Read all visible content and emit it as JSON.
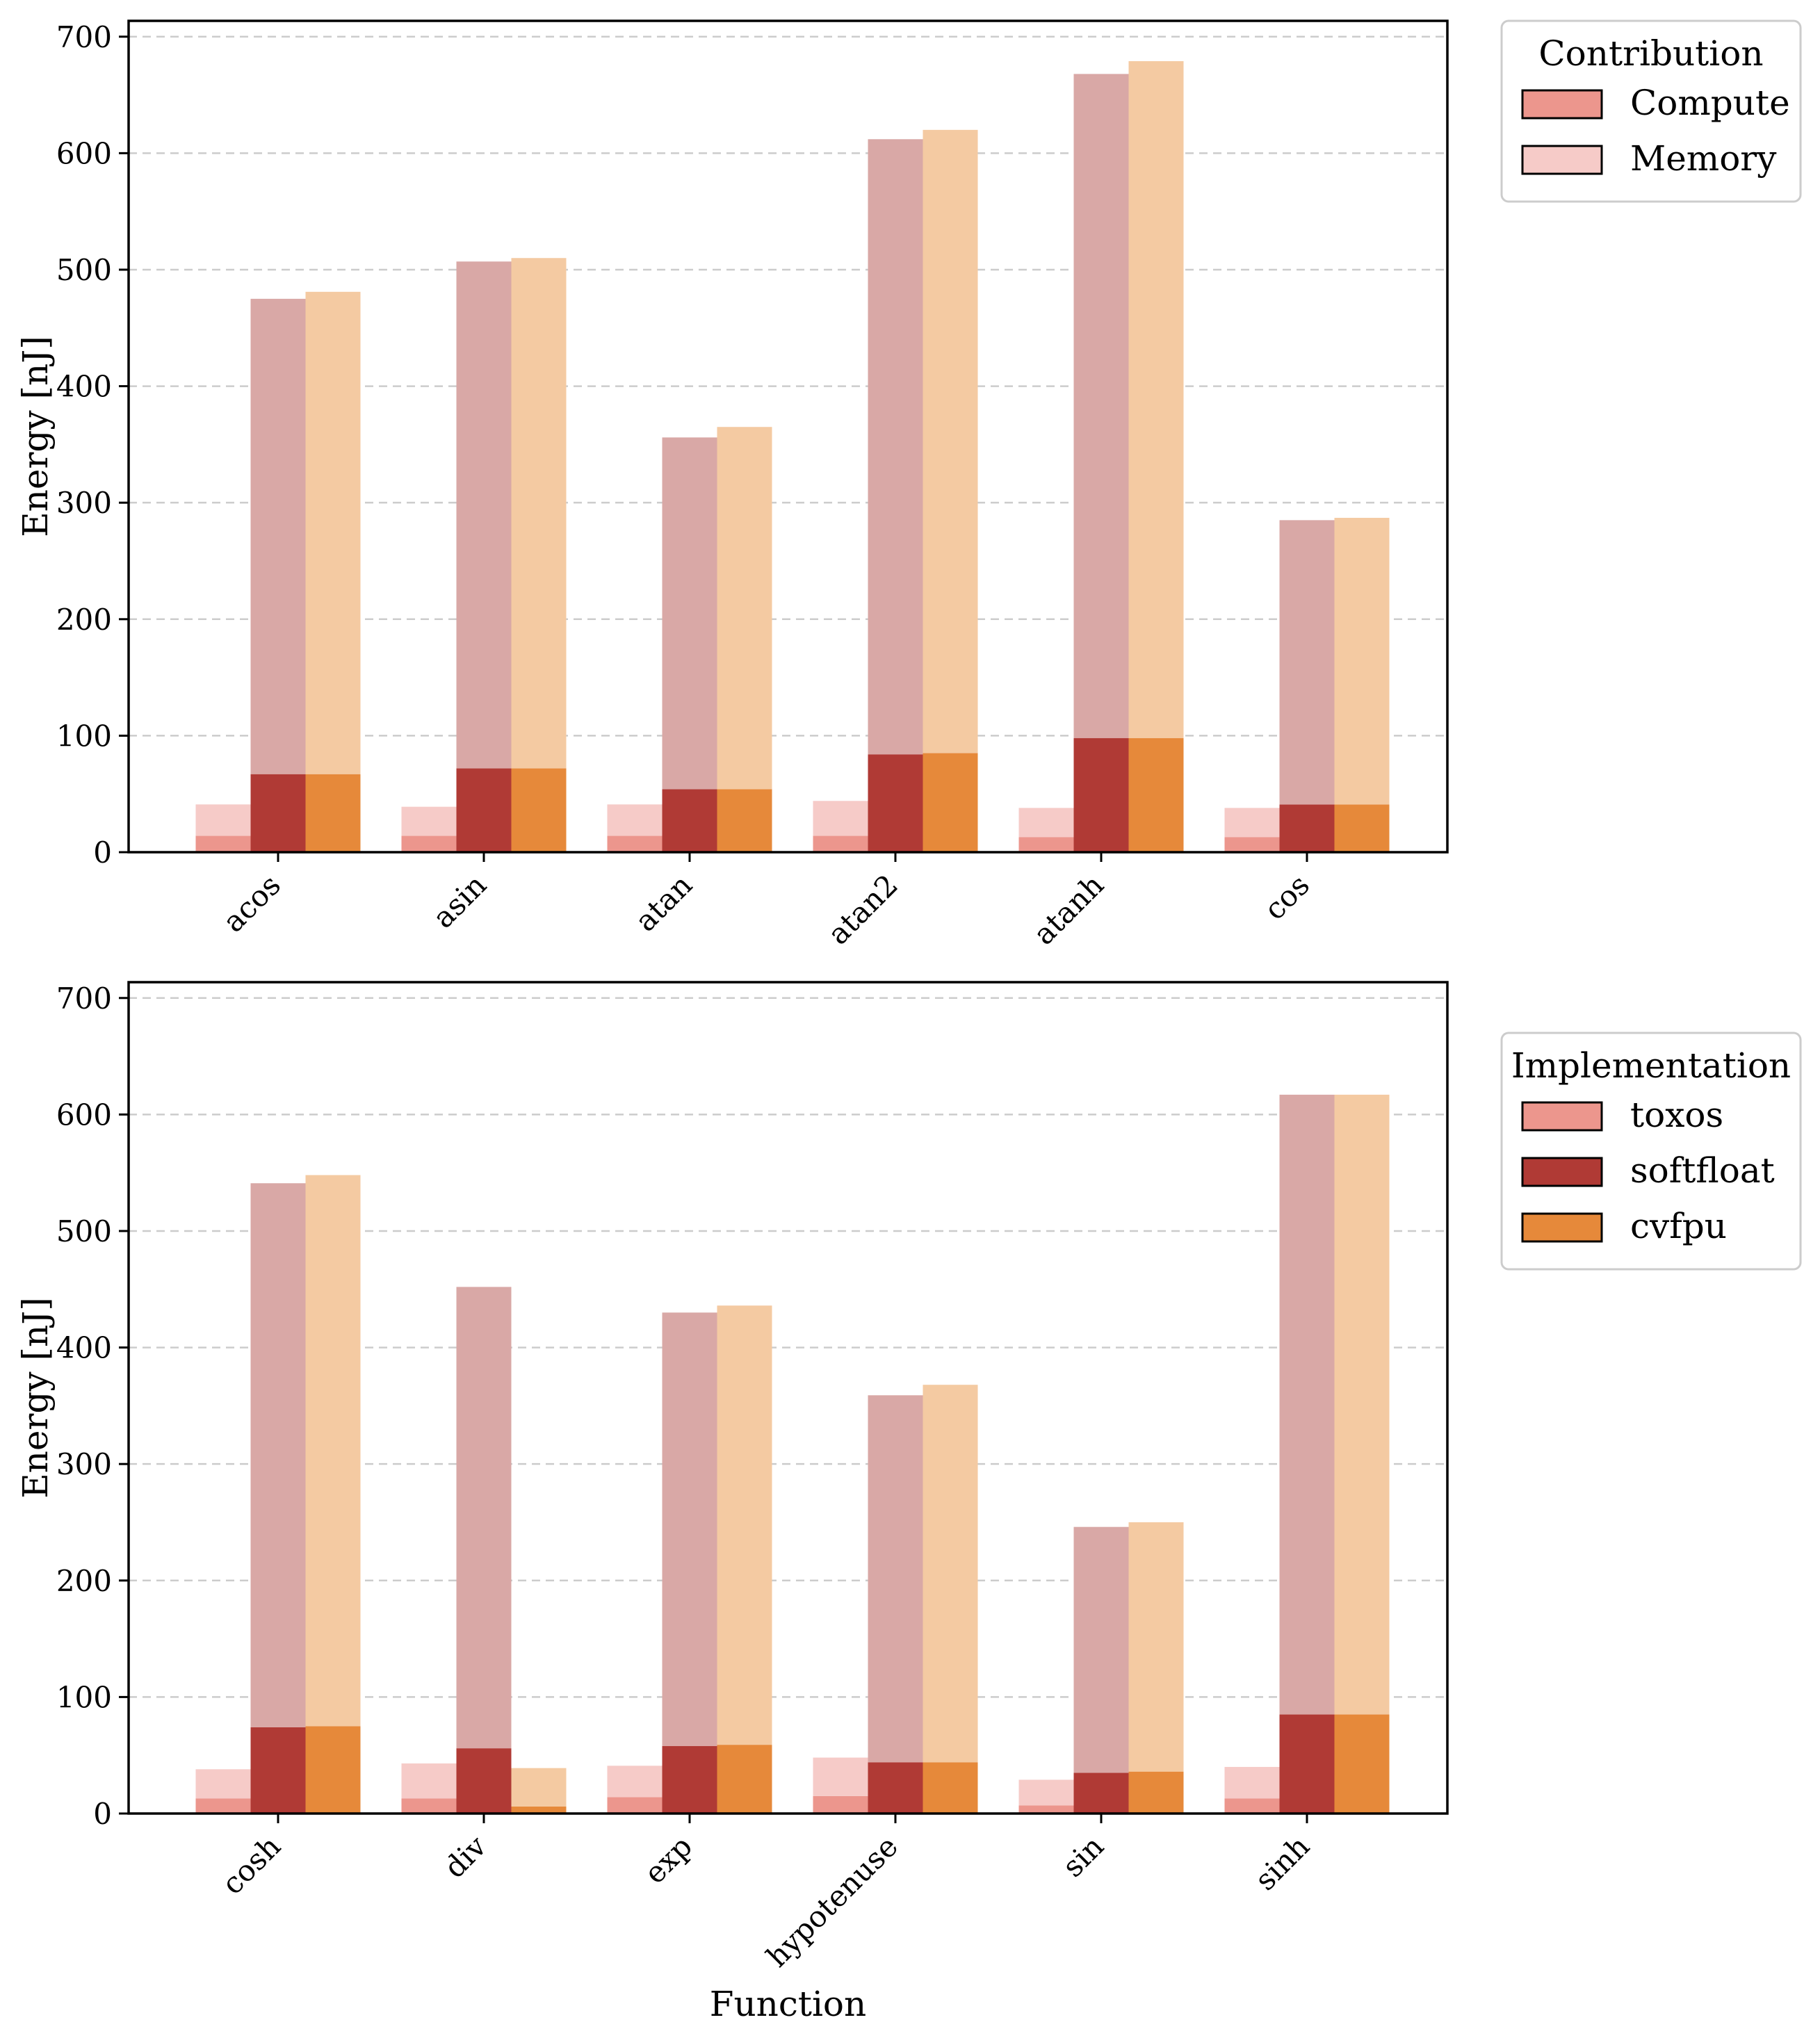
{
  "chart_data": [
    {
      "type": "bar",
      "stacked": true,
      "xlabel": "",
      "ylabel": "Energy [nJ]",
      "ylim": [
        0,
        700
      ],
      "yticks": [
        0,
        100,
        200,
        300,
        400,
        500,
        600,
        700
      ],
      "grid": "y, dashed",
      "categories": [
        "acos",
        "asin",
        "atan",
        "atan2",
        "atanh",
        "cos"
      ],
      "series": [
        {
          "name": "toxos",
          "compute": [
            14,
            14,
            14,
            14,
            13,
            13
          ],
          "memory": [
            27,
            25,
            27,
            30,
            25,
            25
          ]
        },
        {
          "name": "softfloat",
          "compute": [
            67,
            72,
            54,
            84,
            98,
            41
          ],
          "memory": [
            408,
            435,
            302,
            528,
            570,
            244
          ]
        },
        {
          "name": "cvfpu",
          "compute": [
            67,
            72,
            54,
            85,
            98,
            41
          ],
          "memory": [
            414,
            438,
            311,
            535,
            581,
            246
          ]
        }
      ],
      "legend": {
        "title": "Contribution",
        "entries": [
          "Compute",
          "Memory"
        ],
        "placement": "right-top, outside"
      }
    },
    {
      "type": "bar",
      "stacked": true,
      "xlabel": "Function",
      "ylabel": "Energy [nJ]",
      "ylim": [
        0,
        700
      ],
      "yticks": [
        0,
        100,
        200,
        300,
        400,
        500,
        600,
        700
      ],
      "grid": "y, dashed",
      "categories": [
        "cosh",
        "div",
        "exp",
        "hypotenuse",
        "sin",
        "sinh"
      ],
      "series": [
        {
          "name": "toxos",
          "compute": [
            13,
            13,
            14,
            15,
            7,
            13
          ],
          "memory": [
            25,
            30,
            27,
            33,
            22,
            27
          ]
        },
        {
          "name": "softfloat",
          "compute": [
            74,
            56,
            58,
            44,
            35,
            85
          ],
          "memory": [
            467,
            396,
            372,
            315,
            211,
            532
          ]
        },
        {
          "name": "cvfpu",
          "compute": [
            75,
            6,
            59,
            44,
            36,
            85
          ],
          "memory": [
            473,
            33,
            377,
            324,
            214,
            532
          ]
        }
      ],
      "legend": {
        "title": "Implementation",
        "entries": [
          "toxos",
          "softfloat",
          "cvfpu"
        ],
        "placement": "right-middle, outside"
      }
    }
  ],
  "colors": {
    "toxos": "#ec968d",
    "softfloat": "#b03a35",
    "cvfpu": "#e6893a",
    "toxos_memory": "#f6cbc8",
    "softfloat_memory": "#d9a8a6",
    "cvfpu_memory": "#f4caa2",
    "compute_legend": "#ec968d",
    "memory_legend": "#f6cbc8"
  }
}
